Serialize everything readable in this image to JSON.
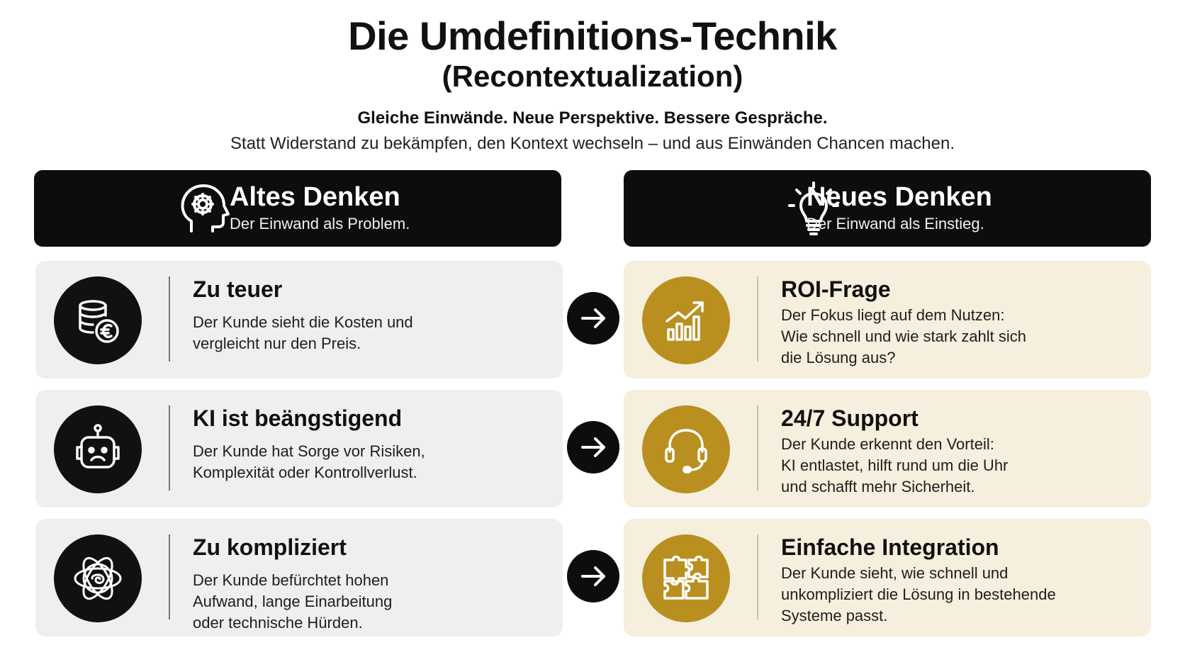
{
  "header": {
    "title": "Die Umdefinitions-Technik",
    "subtitle": "(Recontextualization)",
    "tagline": "Gleiche Einwände. Neue Perspektive. Bessere Gespräche.",
    "lead": "Statt Widerstand zu bekämpfen, den Kontext wechseln – und aus Einwänden Chancen machen."
  },
  "columns": {
    "old": {
      "title": "Altes Denken",
      "subtitle": "Der Einwand als Problem.",
      "icon": "head-gear-icon"
    },
    "new": {
      "title": "Neues Denken",
      "subtitle": "Der Einwand als Einstieg.",
      "icon": "lightbulb-icon"
    }
  },
  "rows": [
    {
      "old": {
        "title": "Zu teuer",
        "text": "Der Kunde sieht die Kosten und\nvergleicht nur den Preis.",
        "icon": "coins-euro-icon"
      },
      "new": {
        "title": "ROI-Frage",
        "text": "Der Fokus liegt auf dem Nutzen:\nWie schnell und wie stark zahlt sich\ndie Lösung aus?",
        "icon": "growth-chart-icon"
      }
    },
    {
      "old": {
        "title": "KI ist beängstigend",
        "text": "Der Kunde hat Sorge vor Risiken,\nKomplexität oder Kontrollverlust.",
        "icon": "sad-robot-icon"
      },
      "new": {
        "title": "24/7 Support",
        "text": "Der Kunde erkennt den Vorteil:\nKI entlastet, hilft rund um die Uhr\nund schafft mehr Sicherheit.",
        "icon": "headset-icon"
      }
    },
    {
      "old": {
        "title": "Zu kompliziert",
        "text": "Der Kunde befürchtet hohen\nAufwand, lange Einarbeitung\noder technische Hürden.",
        "icon": "tangle-icon"
      },
      "new": {
        "title": "Einfache Integration",
        "text": "Der Kunde sieht, wie schnell und\nunkompliziert die Lösung in bestehende\nSysteme passt.",
        "icon": "puzzle-icon"
      }
    }
  ],
  "colors": {
    "dark": "#0d0d0d",
    "gold": "#b98f1f",
    "old_card_bg": "#eeeff0",
    "new_card_bg": "#f6efdd"
  }
}
